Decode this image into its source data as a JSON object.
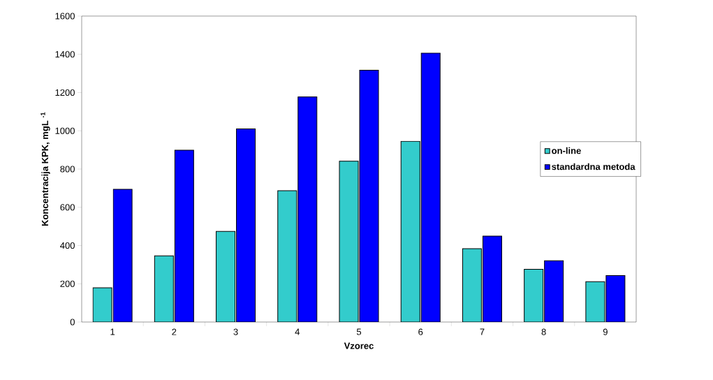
{
  "chart_data": {
    "type": "bar",
    "xlabel": "Vzorec",
    "ylabel": "Koncentracija KPK, mgL $^{-1}$",
    "categories": [
      "1",
      "2",
      "3",
      "4",
      "5",
      "6",
      "7",
      "8",
      "9"
    ],
    "series": [
      {
        "name": "on-line",
        "color": "#33cccc",
        "values": [
          179,
          346,
          474,
          687,
          841,
          945,
          384,
          276,
          211
        ]
      },
      {
        "name": "standardna metoda",
        "color": "#0000ff",
        "values": [
          694,
          899,
          1010,
          1177,
          1317,
          1406,
          449,
          321,
          243
        ]
      }
    ],
    "ylim": [
      0,
      1600
    ],
    "yticks": [
      0,
      200,
      400,
      600,
      800,
      1000,
      1200,
      1400,
      1600
    ],
    "grid": false,
    "legend": "right"
  }
}
